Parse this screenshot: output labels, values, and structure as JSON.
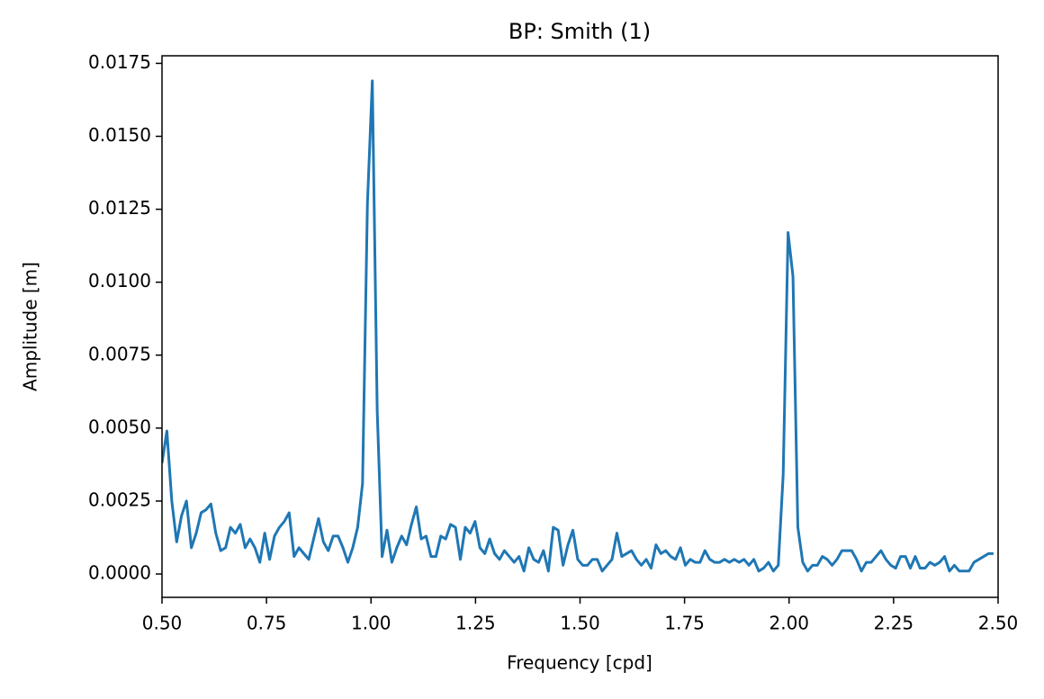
{
  "chart_data": {
    "type": "line",
    "title": "BP: Smith (1)",
    "x_label": "Frequency [cpd]",
    "y_label": "Amplitude [m]",
    "xlim": [
      0.5,
      2.5
    ],
    "ylim": [
      -0.0008,
      0.01776
    ],
    "xticks": [
      {
        "value": 0.5,
        "label": "0.50"
      },
      {
        "value": 0.75,
        "label": "0.75"
      },
      {
        "value": 1.0,
        "label": "1.00"
      },
      {
        "value": 1.25,
        "label": "1.25"
      },
      {
        "value": 1.5,
        "label": "1.50"
      },
      {
        "value": 1.75,
        "label": "1.75"
      },
      {
        "value": 2.0,
        "label": "2.00"
      },
      {
        "value": 2.25,
        "label": "2.25"
      },
      {
        "value": 2.5,
        "label": "2.50"
      }
    ],
    "yticks": [
      {
        "value": 0,
        "label": "0.0000"
      },
      {
        "value": 0.0025,
        "label": "0.0025"
      },
      {
        "value": 0.005,
        "label": "0.0050"
      },
      {
        "value": 0.0075,
        "label": "0.0075"
      },
      {
        "value": 0.01,
        "label": "0.0100"
      },
      {
        "value": 0.0125,
        "label": "0.0125"
      },
      {
        "value": 0.015,
        "label": "0.0150"
      },
      {
        "value": 0.0175,
        "label": "0.0175"
      }
    ],
    "series": [
      {
        "color": "#1f77b4",
        "x": [
          0.5,
          0.5117,
          0.5234,
          0.5351,
          0.5468,
          0.5585,
          0.5702,
          0.5819,
          0.5936,
          0.6053,
          0.617,
          0.6287,
          0.6404,
          0.6521,
          0.6638,
          0.6755,
          0.6872,
          0.6989,
          0.7106,
          0.7223,
          0.734,
          0.7457,
          0.7574,
          0.7691,
          0.7808,
          0.7925,
          0.8042,
          0.8159,
          0.8276,
          0.8393,
          0.851,
          0.8627,
          0.8744,
          0.8861,
          0.8978,
          0.9095,
          0.9212,
          0.9329,
          0.9446,
          0.9563,
          0.968,
          0.9797,
          0.9914,
          1.0031,
          1.0148,
          1.0265,
          1.0382,
          1.0499,
          1.0616,
          1.0733,
          1.085,
          1.0967,
          1.1084,
          1.1201,
          1.1318,
          1.1435,
          1.1552,
          1.1669,
          1.1786,
          1.1903,
          1.202,
          1.2137,
          1.2254,
          1.2371,
          1.2488,
          1.2605,
          1.2722,
          1.2839,
          1.2956,
          1.3073,
          1.319,
          1.3307,
          1.3424,
          1.3541,
          1.3658,
          1.3775,
          1.3892,
          1.4009,
          1.4126,
          1.4243,
          1.436,
          1.4477,
          1.4594,
          1.4711,
          1.4828,
          1.4945,
          1.5062,
          1.5179,
          1.5296,
          1.5413,
          1.553,
          1.5647,
          1.5764,
          1.5881,
          1.5998,
          1.6115,
          1.6232,
          1.6349,
          1.6466,
          1.6583,
          1.67,
          1.6817,
          1.6934,
          1.7051,
          1.7168,
          1.7285,
          1.7402,
          1.7519,
          1.7636,
          1.7753,
          1.787,
          1.7987,
          1.8104,
          1.8221,
          1.8338,
          1.8455,
          1.8572,
          1.8689,
          1.8806,
          1.8923,
          1.904,
          1.9157,
          1.9274,
          1.9391,
          1.9508,
          1.9625,
          1.9742,
          1.9859,
          1.9976,
          2.0093,
          2.021,
          2.0327,
          2.0444,
          2.0561,
          2.0678,
          2.0795,
          2.0912,
          2.1029,
          2.1146,
          2.1263,
          2.138,
          2.1497,
          2.1614,
          2.1731,
          2.1848,
          2.1965,
          2.2082,
          2.2199,
          2.2316,
          2.2433,
          2.255,
          2.2667,
          2.2784,
          2.2901,
          2.3018,
          2.3135,
          2.3252,
          2.3369,
          2.3486,
          2.3603,
          2.372,
          2.3837,
          2.3954,
          2.4071,
          2.4188,
          2.4305,
          2.4422,
          2.4539,
          2.4656,
          2.4773,
          2.489
        ],
        "values": [
          0.0038,
          0.0049,
          0.0025,
          0.0011,
          0.002,
          0.0025,
          0.0009,
          0.0014,
          0.0021,
          0.0022,
          0.0024,
          0.0014,
          0.0008,
          0.0009,
          0.0016,
          0.0014,
          0.0017,
          0.0009,
          0.0012,
          0.0009,
          0.0004,
          0.0014,
          0.0005,
          0.0013,
          0.0016,
          0.0018,
          0.0021,
          0.0006,
          0.0009,
          0.0007,
          0.0005,
          0.0012,
          0.0019,
          0.0011,
          0.0008,
          0.0013,
          0.0013,
          0.0009,
          0.0004,
          0.0009,
          0.0016,
          0.0031,
          0.0127,
          0.0169,
          0.0056,
          0.0006,
          0.0015,
          0.0004,
          0.0009,
          0.0013,
          0.001,
          0.0017,
          0.0023,
          0.0012,
          0.0013,
          0.0006,
          0.0006,
          0.0013,
          0.0012,
          0.0017,
          0.0016,
          0.0005,
          0.0016,
          0.0014,
          0.0018,
          0.0009,
          0.0007,
          0.0012,
          0.0007,
          0.0005,
          0.0008,
          0.0006,
          0.0004,
          0.0006,
          0.0001,
          0.0009,
          0.0005,
          0.0004,
          0.0008,
          0.0001,
          0.0016,
          0.0015,
          0.0003,
          0.001,
          0.0015,
          0.0005,
          0.0003,
          0.0003,
          0.0005,
          0.0005,
          0.0001,
          0.0003,
          0.0005,
          0.0014,
          0.0006,
          0.0007,
          0.0008,
          0.0005,
          0.0003,
          0.0005,
          0.0002,
          0.001,
          0.0007,
          0.0008,
          0.0006,
          0.0005,
          0.0009,
          0.0003,
          0.0005,
          0.0004,
          0.0004,
          0.0008,
          0.0005,
          0.0004,
          0.0004,
          0.0005,
          0.0004,
          0.0005,
          0.0004,
          0.0005,
          0.0003,
          0.0005,
          0.0001,
          0.0002,
          0.0004,
          0.0001,
          0.0003,
          0.0034,
          0.0117,
          0.0102,
          0.0016,
          0.0004,
          0.0001,
          0.0003,
          0.0003,
          0.0006,
          0.0005,
          0.0003,
          0.0005,
          0.0008,
          0.0008,
          0.0008,
          0.0005,
          0.0001,
          0.0004,
          0.0004,
          0.0006,
          0.0008,
          0.0005,
          0.0003,
          0.0002,
          0.0006,
          0.0006,
          0.0002,
          0.0006,
          0.0002,
          0.0002,
          0.0004,
          0.0003,
          0.0004,
          0.0006,
          0.0001,
          0.0003,
          0.0001,
          0.0001,
          0.0001,
          0.0004,
          0.0005,
          0.0006,
          0.0007,
          0.0007
        ]
      }
    ]
  }
}
